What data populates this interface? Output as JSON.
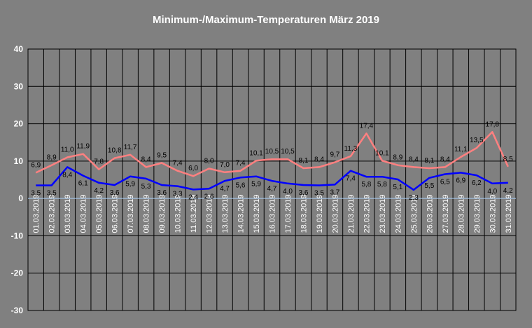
{
  "chart_data": {
    "type": "line",
    "title": "Minimum-/Maximum-Temperaturen März 2019",
    "xlabel": "",
    "ylabel": "",
    "ylim": [
      -30,
      40
    ],
    "yticks": [
      "40",
      "30",
      "20",
      "10",
      "0",
      "-10",
      "-20",
      "-30"
    ],
    "grid": true,
    "legend": "none",
    "categories": [
      "01.03.2019",
      "02.03.2019",
      "03.03.2019",
      "04.03.2019",
      "05.03.2019",
      "06.03.2019",
      "07.03.2019",
      "08.03.2019",
      "09.03.2019",
      "10.03.2019",
      "11.03.2019",
      "12.03.2019",
      "13.03.2019",
      "14.03.2019",
      "15.03.2019",
      "16.03.2019",
      "17.03.2019",
      "18.03.2019",
      "19.03.2019",
      "20.03.2019",
      "21.03.2019",
      "22.03.2019",
      "23.03.2019",
      "24.03.2019",
      "25.03.2019",
      "26.03.2019",
      "27.03.2019",
      "28.03.2019",
      "29.03.2019",
      "30.03.2019",
      "31.03.2019"
    ],
    "series": [
      {
        "role": "max",
        "color": "#ff8080",
        "values": [
          6.9,
          8.9,
          11.0,
          11.9,
          7.8,
          10.8,
          11.7,
          8.4,
          9.5,
          7.4,
          6.0,
          8.0,
          7.0,
          7.4,
          10.1,
          10.5,
          10.5,
          8.1,
          8.4,
          9.7,
          11.3,
          17.4,
          10.1,
          8.9,
          8.4,
          8.1,
          8.4,
          11.1,
          13.5,
          17.8,
          8.5
        ],
        "labels": [
          "6,9",
          "8,9",
          "11,0",
          "11,9",
          "7,8",
          "10,8",
          "11,7",
          "8,4",
          "9,5",
          "7,4",
          "6,0",
          "8,0",
          "7,0",
          "7,4",
          "10,1",
          "10,5",
          "10,5",
          "8,1",
          "8,4",
          "9,7",
          "11,3",
          "17,4",
          "10,1",
          "8,9",
          "8,4",
          "8,1",
          "8,4",
          "11,1",
          "13,5",
          "17,8",
          "8,5"
        ]
      },
      {
        "role": "min",
        "color": "#0000ff",
        "values": [
          3.5,
          3.5,
          8.4,
          6.1,
          4.2,
          3.6,
          5.9,
          5.3,
          3.6,
          3.3,
          2.4,
          2.6,
          4.7,
          5.6,
          5.9,
          4.7,
          4.0,
          3.6,
          3.5,
          3.7,
          7.4,
          5.8,
          5.8,
          5.1,
          2.3,
          5.5,
          6.5,
          6.9,
          6.2,
          4.0,
          4.2
        ],
        "labels": [
          "3,5",
          "3,5",
          "8,4",
          "6,1",
          "4,2",
          "3,6",
          "5,9",
          "5,3",
          "3,6",
          "3,3",
          "2,4",
          "2,6",
          "4,7",
          "5,6",
          "5,9",
          "4,7",
          "4,0",
          "3,6",
          "3,5",
          "3,7",
          "7,4",
          "5,8",
          "5,8",
          "5,1",
          "2,3",
          "5,5",
          "6,5",
          "6,9",
          "6,2",
          "4,0",
          "4,2"
        ]
      }
    ]
  }
}
